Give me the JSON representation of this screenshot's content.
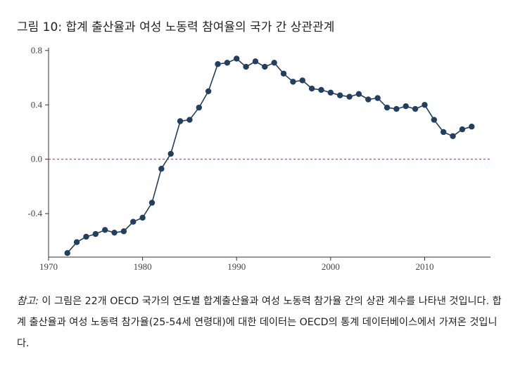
{
  "chart_data": {
    "type": "line",
    "title": "그림 10: 합계 출산율과 여성 노동력 참여율의 국가 간 상관관계",
    "xlabel": "",
    "ylabel": "",
    "xlim": [
      1970,
      2017
    ],
    "ylim": [
      -0.72,
      0.82
    ],
    "xticks": [
      1970,
      1980,
      1990,
      2000,
      2010
    ],
    "xtick_labels": [
      "1970",
      "1980",
      "1990",
      "2000",
      "2010"
    ],
    "yticks": [
      0.8,
      0.4,
      0.0,
      -0.4
    ],
    "ytick_labels": [
      "0.8",
      "0.4",
      "0.0",
      "-0.4"
    ],
    "reference_line": 0.0,
    "colors": {
      "series": "#223f5f",
      "reference": "#b0305a"
    },
    "series": [
      {
        "name": "correlation",
        "x": [
          1972,
          1973,
          1974,
          1975,
          1976,
          1977,
          1978,
          1979,
          1980,
          1981,
          1982,
          1983,
          1984,
          1985,
          1986,
          1987,
          1988,
          1989,
          1990,
          1991,
          1992,
          1993,
          1994,
          1995,
          1996,
          1997,
          1998,
          1999,
          2000,
          2001,
          2002,
          2003,
          2004,
          2005,
          2006,
          2007,
          2008,
          2009,
          2010,
          2011,
          2012,
          2013,
          2014,
          2015
        ],
        "y": [
          -0.69,
          -0.61,
          -0.57,
          -0.55,
          -0.52,
          -0.54,
          -0.53,
          -0.46,
          -0.43,
          -0.32,
          -0.07,
          0.04,
          0.28,
          0.29,
          0.38,
          0.5,
          0.7,
          0.71,
          0.74,
          0.68,
          0.72,
          0.68,
          0.71,
          0.63,
          0.57,
          0.58,
          0.52,
          0.51,
          0.49,
          0.47,
          0.46,
          0.48,
          0.44,
          0.45,
          0.38,
          0.37,
          0.39,
          0.37,
          0.4,
          0.29,
          0.2,
          0.17,
          0.22,
          0.24
        ]
      }
    ]
  },
  "note": {
    "label": "참고:",
    "text": " 이 그림은 22개 OECD 국가의 연도별 합계출산율과 여성 노동력 참가율 간의 상관 계수를 나타낸 것입니다. 합계 출산율과 여성 노동력 참가율(25-54세 연령대)에 대한 데이터는 OECD의 통계 데이터베이스에서 가져온 것입니다."
  }
}
